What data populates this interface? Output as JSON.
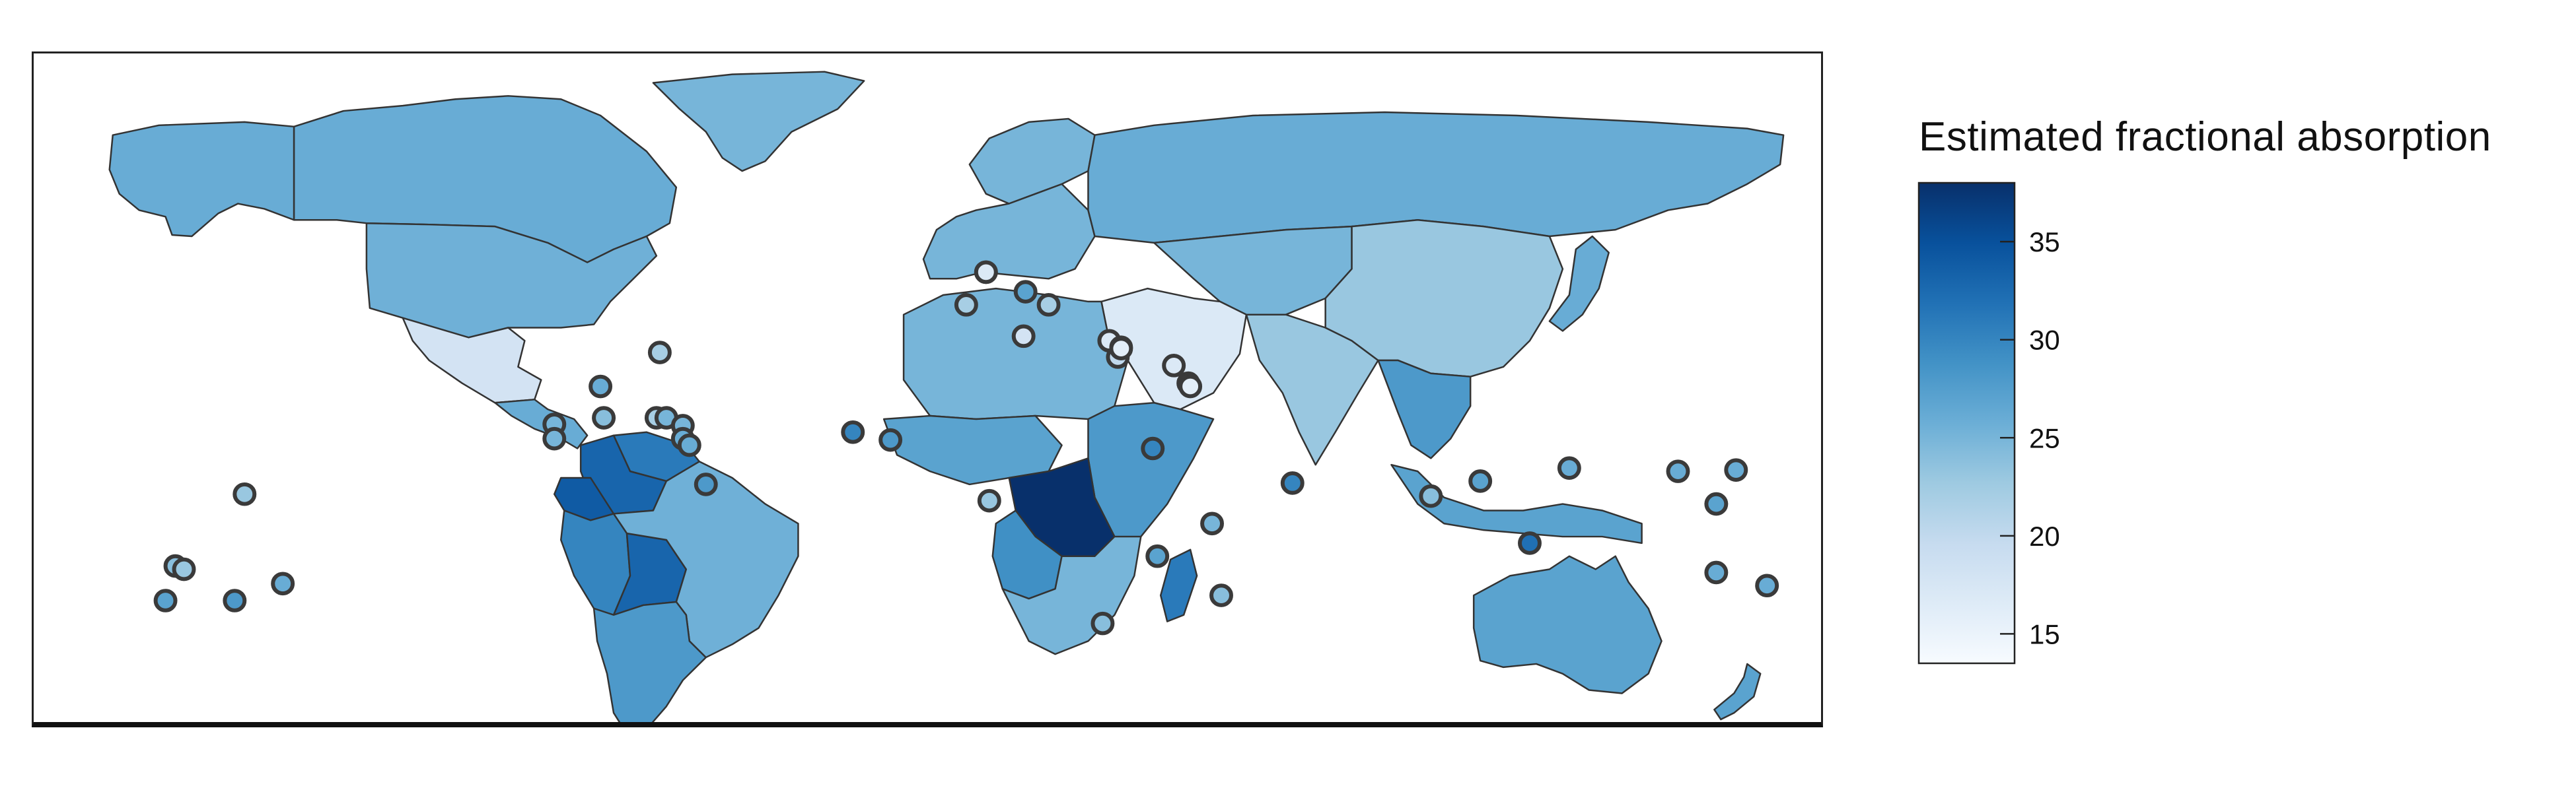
{
  "legend": {
    "title": "Estimated fractional absorption",
    "min": 13.5,
    "max": 38,
    "ticks": [
      15,
      20,
      25,
      30,
      35
    ],
    "colors": [
      "#f7fbff",
      "#deebf7",
      "#c6dbef",
      "#9ecae1",
      "#6baed6",
      "#4292c6",
      "#2171b5",
      "#08519c",
      "#08306b"
    ]
  },
  "regions": [
    {
      "name": "canada",
      "value": 26
    },
    {
      "name": "alaska",
      "value": 26
    },
    {
      "name": "greenland",
      "value": 25
    },
    {
      "name": "usa",
      "value": 25.5
    },
    {
      "name": "mexico",
      "value": 18
    },
    {
      "name": "central-america",
      "value": 26
    },
    {
      "name": "colombia",
      "value": 33
    },
    {
      "name": "venezuela",
      "value": 31
    },
    {
      "name": "ecuador",
      "value": 34
    },
    {
      "name": "peru",
      "value": 30
    },
    {
      "name": "bolivia",
      "value": 33
    },
    {
      "name": "brazil",
      "value": 25.5
    },
    {
      "name": "southern-cone",
      "value": 28
    },
    {
      "name": "scandinavia",
      "value": 25
    },
    {
      "name": "western-europe",
      "value": 25
    },
    {
      "name": "russia",
      "value": 26
    },
    {
      "name": "central-asia",
      "value": 25
    },
    {
      "name": "middle-east",
      "value": 17
    },
    {
      "name": "north-africa",
      "value": 25
    },
    {
      "name": "west-africa",
      "value": 27
    },
    {
      "name": "east-africa",
      "value": 28
    },
    {
      "name": "congo",
      "value": 38
    },
    {
      "name": "angola",
      "value": 29
    },
    {
      "name": "southern-africa",
      "value": 25
    },
    {
      "name": "madagascar",
      "value": 31
    },
    {
      "name": "china",
      "value": 23
    },
    {
      "name": "india",
      "value": 23
    },
    {
      "name": "southeast-asia",
      "value": 28
    },
    {
      "name": "japan",
      "value": 26
    },
    {
      "name": "indonesia",
      "value": 27
    },
    {
      "name": "australia",
      "value": 27
    },
    {
      "name": "new-zealand",
      "value": 27
    }
  ],
  "markers": [
    {
      "value": 22
    },
    {
      "value": 26
    },
    {
      "value": 25
    },
    {
      "value": 25
    },
    {
      "value": 24
    },
    {
      "value": 22
    },
    {
      "value": 25
    },
    {
      "value": 25
    },
    {
      "value": 26
    },
    {
      "value": 26
    },
    {
      "value": 28
    },
    {
      "value": 23
    },
    {
      "value": 24
    },
    {
      "value": 23
    },
    {
      "value": 27
    },
    {
      "value": 28
    },
    {
      "value": 26
    },
    {
      "value": 30
    },
    {
      "value": 28
    },
    {
      "value": 27
    },
    {
      "value": 22
    },
    {
      "value": 27
    },
    {
      "value": 22
    },
    {
      "value": 18
    },
    {
      "value": 17
    },
    {
      "value": 20
    },
    {
      "value": 21
    },
    {
      "value": 17
    },
    {
      "value": 17
    },
    {
      "value": 16
    },
    {
      "value": 17
    },
    {
      "value": 16
    },
    {
      "value": 23
    },
    {
      "value": 30
    },
    {
      "value": 27
    },
    {
      "value": 25
    },
    {
      "value": 24
    },
    {
      "value": 24
    },
    {
      "value": 30
    },
    {
      "value": 24
    },
    {
      "value": 27
    },
    {
      "value": 32
    },
    {
      "value": 26
    },
    {
      "value": 26
    },
    {
      "value": 26
    },
    {
      "value": 27
    },
    {
      "value": 26
    },
    {
      "value": 26
    }
  ]
}
